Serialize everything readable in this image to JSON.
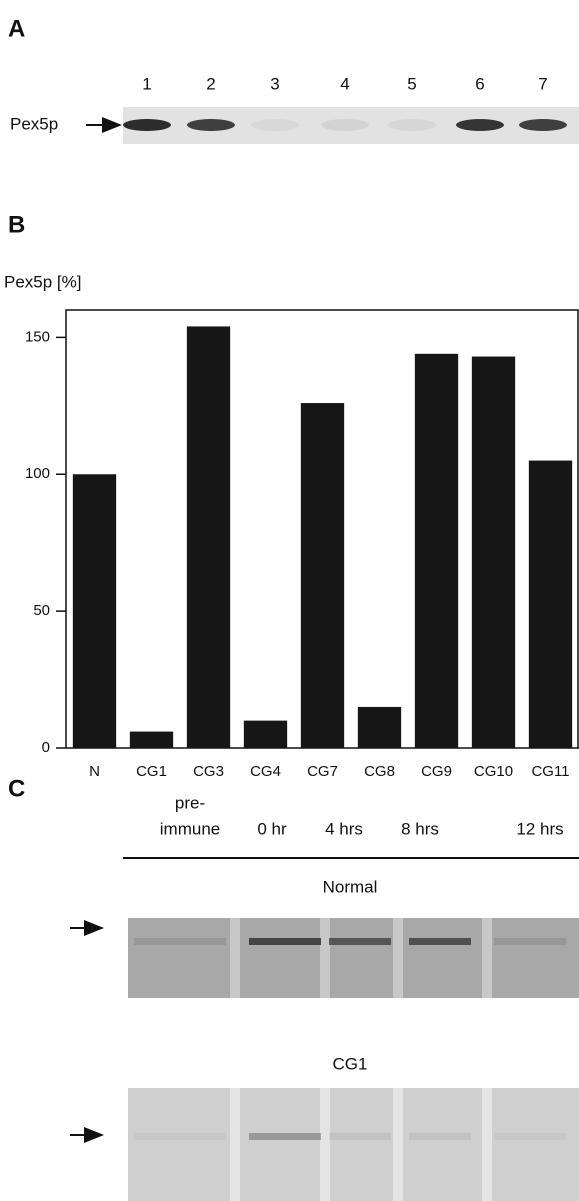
{
  "panel_a": {
    "label": "A",
    "lanes": [
      "1",
      "2",
      "3",
      "4",
      "5",
      "6",
      "7"
    ],
    "protein": "Pex5p"
  },
  "panel_b": {
    "label": "B"
  },
  "chart_data": {
    "type": "bar",
    "y_label": "Pex5p  [%]",
    "categories": [
      "N",
      "CG1",
      "CG3",
      "CG4",
      "CG7",
      "CG8",
      "CG9",
      "CG10",
      "CG11"
    ],
    "values": [
      100,
      6,
      154,
      10,
      126,
      15,
      144,
      143,
      105
    ],
    "color": "#161616",
    "ylim": [
      0,
      160
    ],
    "yticks": [
      0,
      50,
      100,
      150
    ]
  },
  "panel_c": {
    "label": "C",
    "columns": [
      [
        "pre-",
        "immune"
      ],
      [
        "0 hr"
      ],
      [
        "4 hrs"
      ],
      [
        "8 hrs"
      ],
      [
        "12 hrs"
      ]
    ],
    "gels": [
      "Normal",
      "CG1"
    ]
  }
}
